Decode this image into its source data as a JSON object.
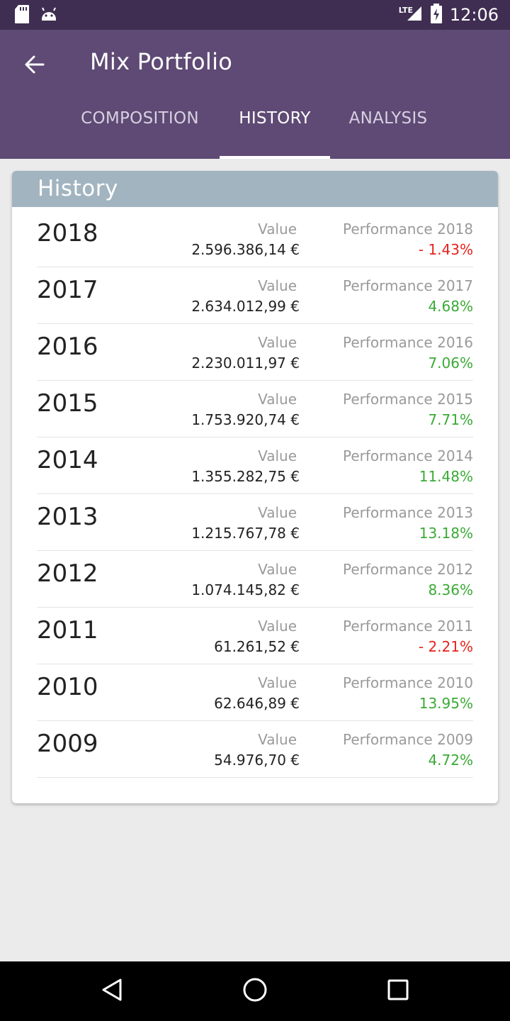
{
  "status_bar": {
    "time": "12:06",
    "network": "LTE",
    "icons": [
      "sd-card-icon",
      "android-icon",
      "signal-icon",
      "battery-charging-icon"
    ]
  },
  "app_bar": {
    "title": "Mix Portfolio",
    "back_icon": "arrow-left-icon"
  },
  "tabs": [
    {
      "label": "COMPOSITION",
      "active": false
    },
    {
      "label": "HISTORY",
      "active": true
    },
    {
      "label": "ANALYSIS",
      "active": false
    }
  ],
  "history": {
    "header": "History",
    "rows": [
      {
        "year": "2018",
        "value_label": "Value",
        "value": "2.596.386,14 €",
        "perf_label": "Performance 2018",
        "perf": "- 1.43%",
        "trend": "negative"
      },
      {
        "year": "2017",
        "value_label": "Value",
        "value": "2.634.012,99 €",
        "perf_label": "Performance 2017",
        "perf": "4.68%",
        "trend": "positive"
      },
      {
        "year": "2016",
        "value_label": "Value",
        "value": "2.230.011,97 €",
        "perf_label": "Performance 2016",
        "perf": "7.06%",
        "trend": "positive"
      },
      {
        "year": "2015",
        "value_label": "Value",
        "value": "1.753.920,74 €",
        "perf_label": "Performance 2015",
        "perf": "7.71%",
        "trend": "positive"
      },
      {
        "year": "2014",
        "value_label": "Value",
        "value": "1.355.282,75 €",
        "perf_label": "Performance 2014",
        "perf": "11.48%",
        "trend": "positive"
      },
      {
        "year": "2013",
        "value_label": "Value",
        "value": "1.215.767,78 €",
        "perf_label": "Performance 2013",
        "perf": "13.18%",
        "trend": "positive"
      },
      {
        "year": "2012",
        "value_label": "Value",
        "value": "1.074.145,82 €",
        "perf_label": "Performance 2012",
        "perf": "8.36%",
        "trend": "positive"
      },
      {
        "year": "2011",
        "value_label": "Value",
        "value": "61.261,52 €",
        "perf_label": "Performance 2011",
        "perf": "- 2.21%",
        "trend": "negative"
      },
      {
        "year": "2010",
        "value_label": "Value",
        "value": "62.646,89 €",
        "perf_label": "Performance 2010",
        "perf": "13.95%",
        "trend": "positive"
      },
      {
        "year": "2009",
        "value_label": "Value",
        "value": "54.976,70 €",
        "perf_label": "Performance 2009",
        "perf": "4.72%",
        "trend": "positive"
      }
    ]
  },
  "colors": {
    "status_bar": "#3f2e52",
    "app_bar": "#5e4a74",
    "card_header": "#a2b4c0",
    "negative": "#e8221c",
    "positive": "#3aaa35"
  },
  "nav_bar": {
    "icons": [
      "back-triangle-icon",
      "home-circle-icon",
      "recents-square-icon"
    ]
  }
}
